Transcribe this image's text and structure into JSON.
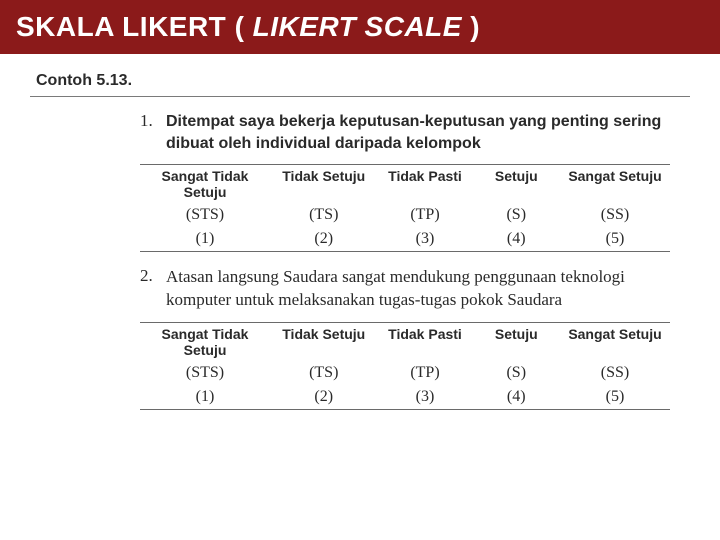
{
  "header": {
    "title_plain": "SKALA LIKERT ( ",
    "title_italic": "LIKERT SCALE",
    "title_end": " )",
    "bg_color": "#8b1a1a",
    "text_color": "#ffffff"
  },
  "example_label": "Contoh 5.13.",
  "questions": [
    {
      "number": "1.",
      "text": "Ditempat saya bekerja keputusan-keputusan yang penting sering dibuat oleh individual daripada kelompok",
      "text_style": "sans-bold"
    },
    {
      "number": "2.",
      "text": "Atasan langsung Saudara sangat mendukung penggunaan teknologi komputer untuk melaksanakan tugas-tugas pokok Saudara",
      "text_style": "serif"
    }
  ],
  "scale": {
    "columns": [
      {
        "label": "Sangat Tidak Setuju",
        "code": "(STS)",
        "value": "(1)"
      },
      {
        "label": "Tidak Setuju",
        "code": "(TS)",
        "value": "(2)"
      },
      {
        "label": "Tidak Pasti",
        "code": "(TP)",
        "value": "(3)"
      },
      {
        "label": "Setuju",
        "code": "(S)",
        "value": "(4)"
      },
      {
        "label": "Sangat Setuju",
        "code": "(SS)",
        "value": "(5)"
      }
    ]
  },
  "colors": {
    "page_bg": "#ffffff",
    "text": "#2a2a2a",
    "rule": "#6a6a6a"
  }
}
